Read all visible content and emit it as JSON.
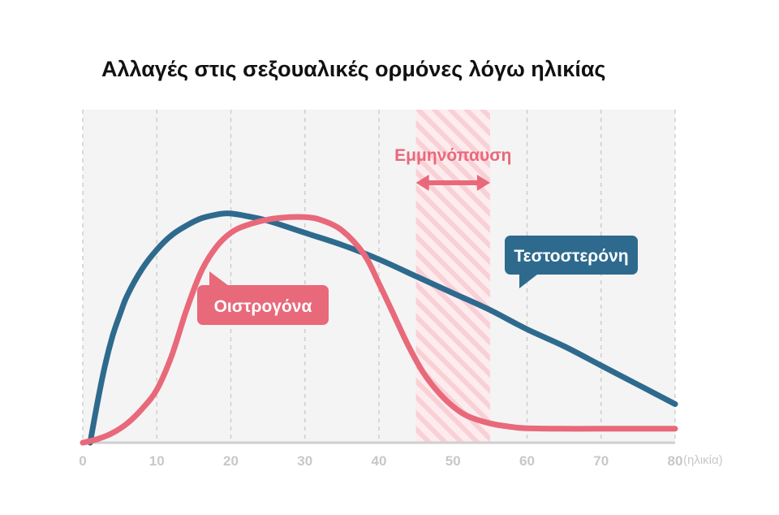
{
  "chart_data": {
    "type": "line",
    "title": "Αλλαγές στις σεξουαλικές ορμόνες λόγω ηλικίας",
    "xlabel": "(ηλικία)",
    "ylabel": "",
    "xlim": [
      0,
      80
    ],
    "x_ticks": [
      "0",
      "10",
      "20",
      "30",
      "40",
      "50",
      "60",
      "70",
      "80"
    ],
    "grid": true,
    "series": [
      {
        "name": "Τεστοστερόνη",
        "color": "#2e6a8e",
        "x": [
          1,
          2,
          3,
          4,
          5,
          6,
          8,
          10,
          12,
          14,
          16,
          18,
          19,
          20,
          22,
          25,
          30,
          35,
          40,
          45,
          50,
          55,
          60,
          65,
          70,
          75,
          80
        ],
        "y": [
          0,
          17,
          32,
          44,
          53,
          61,
          72,
          80,
          86,
          90,
          93,
          94.5,
          95,
          95,
          94,
          92,
          87,
          82,
          76,
          69,
          62,
          55,
          47,
          40,
          32,
          24,
          16
        ]
      },
      {
        "name": "Οιστρογόνα",
        "color": "#e8697a",
        "x": [
          0,
          2,
          4,
          6,
          8,
          10,
          12,
          14,
          16,
          18,
          20,
          22,
          25,
          28,
          30,
          32,
          35,
          38,
          40,
          42,
          44,
          46,
          48,
          50,
          52,
          55,
          58,
          60,
          65,
          70,
          80
        ],
        "y": [
          0,
          1.5,
          4,
          8,
          14,
          22,
          36,
          55,
          71,
          81,
          87,
          90,
          92.5,
          93.5,
          93.5,
          92.5,
          88,
          78,
          66,
          53,
          40,
          29,
          21,
          15,
          11,
          8,
          6.5,
          6,
          5.8,
          5.8,
          5.8
        ]
      }
    ],
    "annotations": [
      {
        "text": "Εμμηνόπαυση",
        "x_range": [
          45,
          55
        ],
        "color": "#e8697a"
      }
    ]
  }
}
